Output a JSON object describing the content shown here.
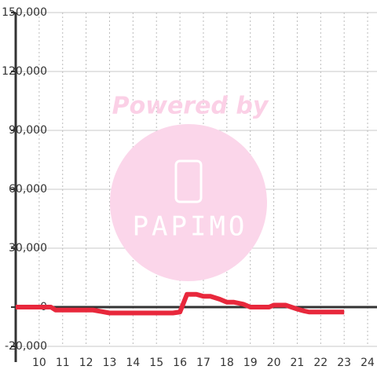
{
  "chart_data": {
    "type": "line",
    "watermark": {
      "line1": "Powered by",
      "line2": "PAPIMO"
    },
    "x": [
      9,
      10.5,
      10.7,
      12.3,
      13,
      15,
      15.7,
      16,
      16.3,
      16.7,
      17,
      17.3,
      17.7,
      18,
      18.3,
      18.7,
      19,
      19.8,
      20,
      20.5,
      21,
      21.3,
      21.5,
      22,
      23
    ],
    "series": [
      {
        "color": "#e8283c",
        "values": [
          0,
          0,
          -1500,
          -1500,
          -3000,
          -3000,
          -3000,
          -2500,
          6500,
          6500,
          5500,
          5500,
          4000,
          2500,
          2500,
          1500,
          0,
          0,
          1000,
          1000,
          -1000,
          -2000,
          -2500,
          -2500,
          -2500
        ]
      }
    ],
    "xlim": [
      9,
      24.4
    ],
    "xticks": [
      10,
      11,
      12,
      13,
      14,
      15,
      16,
      17,
      18,
      19,
      20,
      21,
      22,
      23,
      24
    ],
    "ylim": [
      -20000,
      150000
    ],
    "yticks": [
      {
        "value": -20000,
        "label": "-20,000"
      },
      0,
      {
        "value": 30000,
        "label": "30,000"
      },
      {
        "value": 60000,
        "label": "60,000"
      },
      {
        "value": 90000,
        "label": "90,000"
      },
      {
        "value": 120000,
        "label": "120,000"
      },
      {
        "value": 150000,
        "label": "150,000"
      }
    ],
    "grid": true
  }
}
